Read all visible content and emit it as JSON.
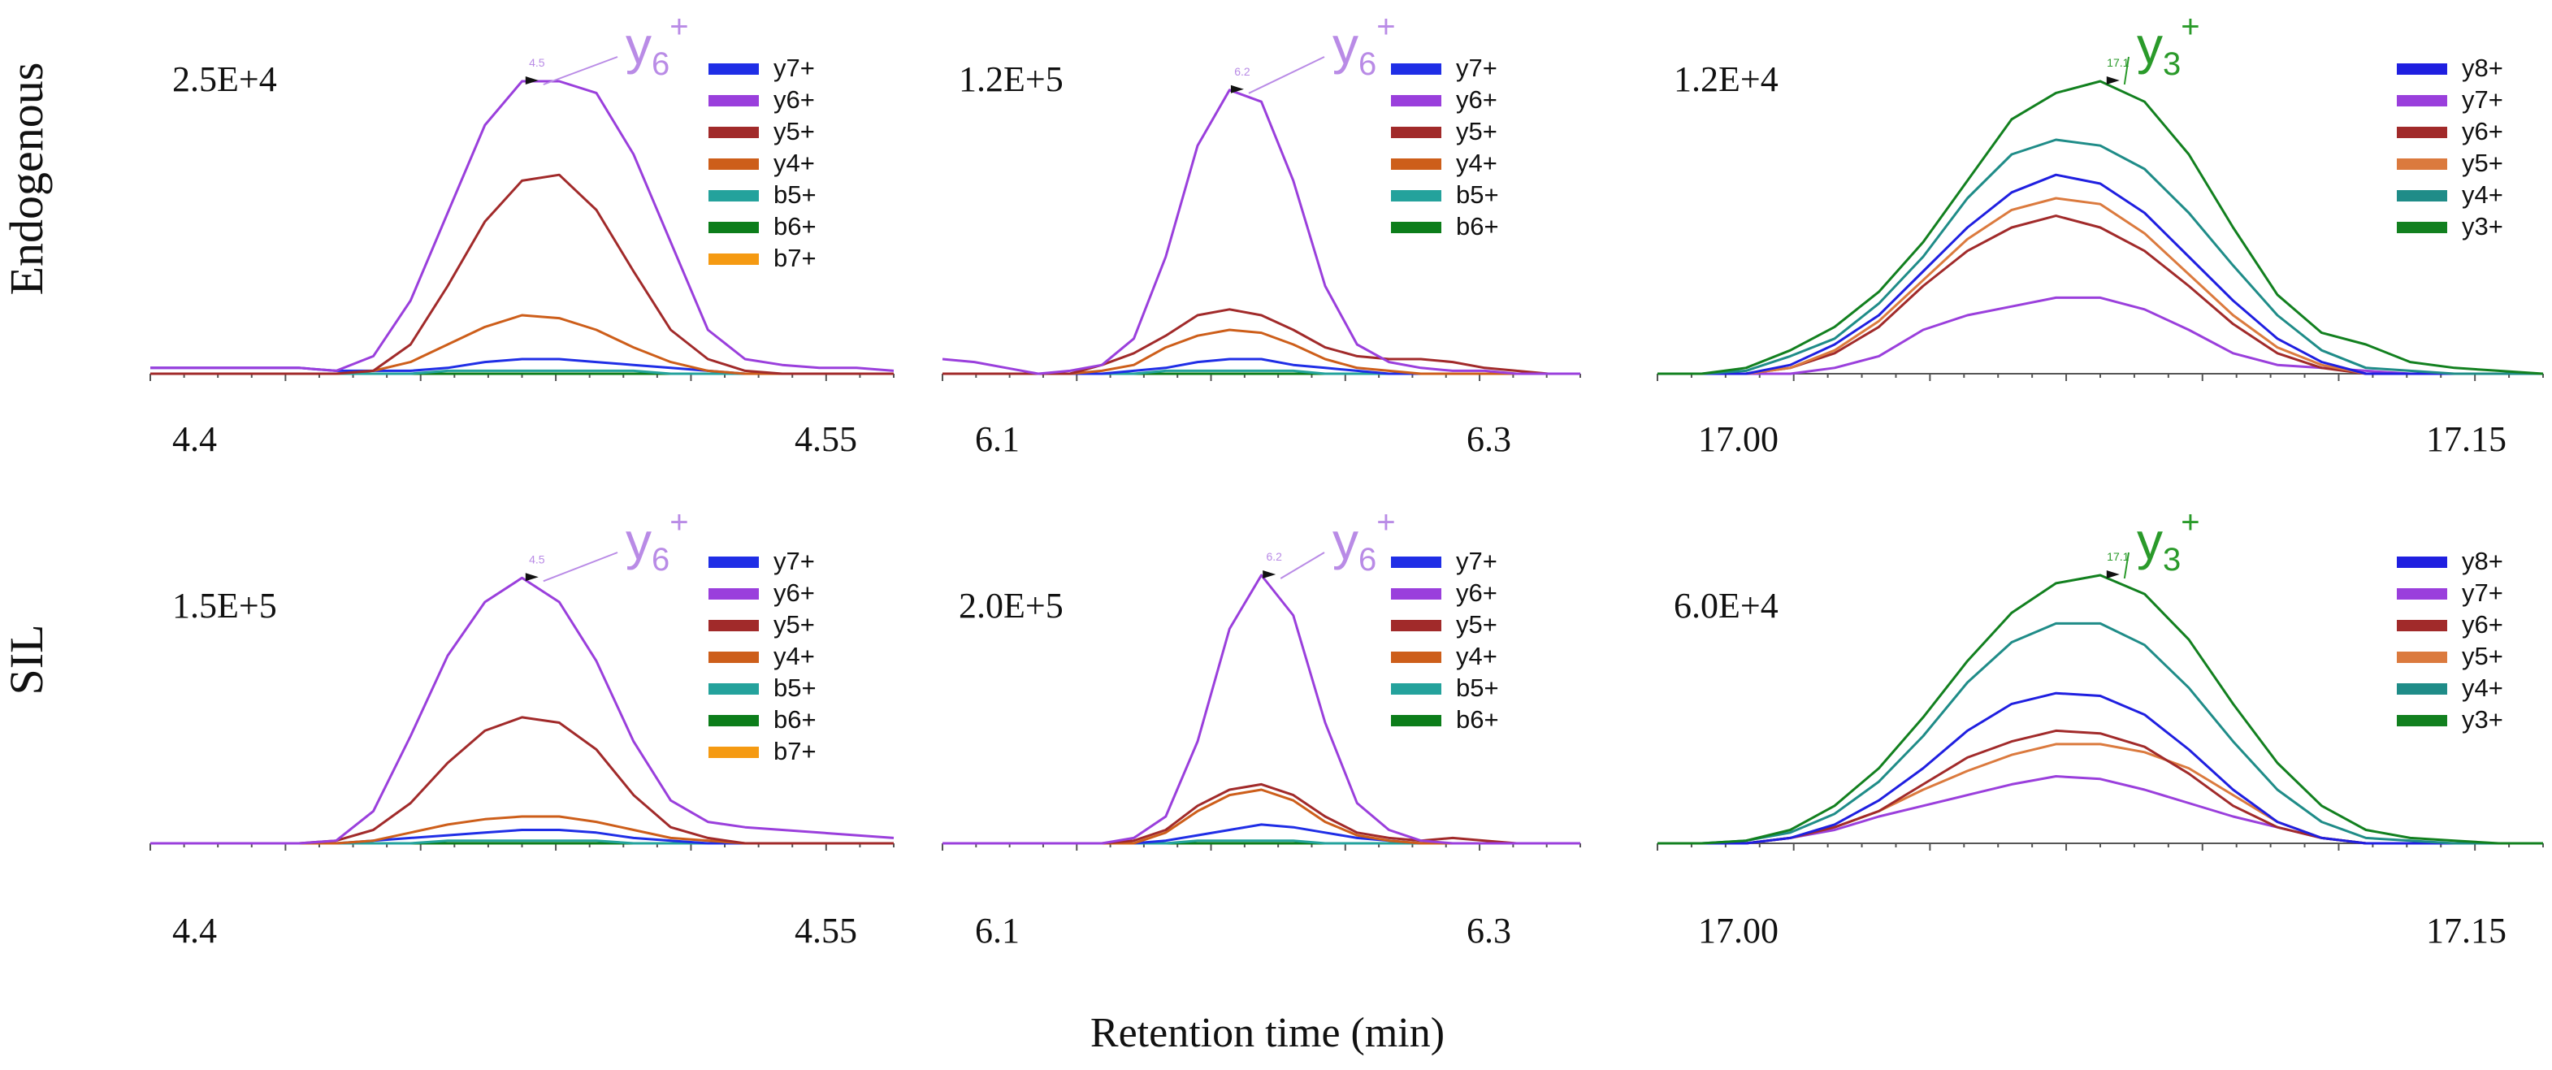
{
  "figure": {
    "row_labels": [
      "Endogenous",
      "SIL"
    ],
    "xlabel": "Retention time (min)"
  },
  "colors": {
    "y8+": "#1f1fe0",
    "y7+": "#1f2ee6",
    "y6+": "#9a3fdc",
    "y5+": "#a12a2a",
    "y4+": "#cd5e1a",
    "y3+": "#12801f",
    "b5+": "#24a29c",
    "b6+": "#0c7d1a",
    "b7+": "#f59a12",
    "p3_y7+": "#9a3fdc",
    "p3_y6+": "#a12a2a",
    "p3_y5+": "#db7a3e",
    "p3_y4+": "#1f8c88",
    "callout_purple": "#b98be6",
    "callout_green": "#2a9a2a"
  },
  "chart_data": [
    {
      "type": "line",
      "row": "Endogenous",
      "col": 0,
      "intensity_label": "2.5E+4",
      "x_tick_labels": [
        "4.4",
        "4.55"
      ],
      "apex_label": "4.5",
      "callout": {
        "ion": "y",
        "sub": "6",
        "sup": "+",
        "color_key": "callout_purple"
      },
      "legend": [
        "y7+",
        "y6+",
        "y5+",
        "y4+",
        "b5+",
        "b6+",
        "b7+"
      ],
      "series": [
        {
          "name": "y6+",
          "values": [
            0.02,
            0.02,
            0.02,
            0.02,
            0.02,
            0.01,
            0.06,
            0.25,
            0.55,
            0.85,
            1.0,
            1.0,
            0.96,
            0.75,
            0.45,
            0.15,
            0.05,
            0.03,
            0.02,
            0.02,
            0.01
          ]
        },
        {
          "name": "y5+",
          "values": [
            0,
            0,
            0,
            0,
            0,
            0,
            0.01,
            0.1,
            0.3,
            0.52,
            0.66,
            0.68,
            0.56,
            0.35,
            0.15,
            0.05,
            0.01,
            0,
            0,
            0,
            0
          ]
        },
        {
          "name": "y4+",
          "values": [
            0,
            0,
            0,
            0,
            0,
            0,
            0.01,
            0.04,
            0.1,
            0.16,
            0.2,
            0.19,
            0.15,
            0.09,
            0.04,
            0.01,
            0,
            0,
            0,
            0,
            0
          ]
        },
        {
          "name": "y7+",
          "values": [
            0.02,
            0.02,
            0.02,
            0.02,
            0.02,
            0.01,
            0.01,
            0.01,
            0.02,
            0.04,
            0.05,
            0.05,
            0.04,
            0.03,
            0.02,
            0.01,
            0,
            0,
            0,
            0,
            0
          ]
        },
        {
          "name": "b5+",
          "values": [
            0,
            0,
            0,
            0,
            0,
            0,
            0,
            0,
            0.01,
            0.01,
            0.01,
            0.01,
            0.01,
            0.01,
            0,
            0,
            0,
            0,
            0,
            0,
            0
          ]
        },
        {
          "name": "b6+",
          "values": [
            0,
            0,
            0,
            0,
            0,
            0,
            0,
            0,
            0,
            0,
            0,
            0,
            0,
            0,
            0,
            0,
            0,
            0,
            0,
            0,
            0
          ]
        },
        {
          "name": "b7+",
          "values": [
            0,
            0,
            0,
            0,
            0,
            0,
            0,
            0,
            0,
            0,
            0,
            0,
            0,
            0,
            0,
            0,
            0,
            0,
            0,
            0,
            0
          ]
        }
      ]
    },
    {
      "type": "line",
      "row": "Endogenous",
      "col": 1,
      "intensity_label": "1.2E+5",
      "x_tick_labels": [
        "6.1",
        "6.3"
      ],
      "apex_label": "6.2",
      "callout": {
        "ion": "y",
        "sub": "6",
        "sup": "+",
        "color_key": "callout_purple"
      },
      "legend": [
        "y7+",
        "y6+",
        "y5+",
        "y4+",
        "b5+",
        "b6+"
      ],
      "series": [
        {
          "name": "y6+",
          "values": [
            0.05,
            0.04,
            0.02,
            0.0,
            0.01,
            0.03,
            0.12,
            0.4,
            0.78,
            0.97,
            0.93,
            0.66,
            0.3,
            0.1,
            0.04,
            0.02,
            0.01,
            0.01,
            0.0,
            0.0,
            0.0
          ]
        },
        {
          "name": "y5+",
          "values": [
            0,
            0,
            0,
            0,
            0,
            0.03,
            0.07,
            0.13,
            0.2,
            0.22,
            0.2,
            0.15,
            0.09,
            0.06,
            0.05,
            0.05,
            0.04,
            0.02,
            0.01,
            0,
            0
          ]
        },
        {
          "name": "y4+",
          "values": [
            0,
            0,
            0,
            0,
            0,
            0.01,
            0.03,
            0.09,
            0.13,
            0.15,
            0.14,
            0.1,
            0.05,
            0.02,
            0.01,
            0,
            0,
            0,
            0,
            0,
            0
          ]
        },
        {
          "name": "y7+",
          "values": [
            0,
            0,
            0,
            0,
            0,
            0,
            0.01,
            0.02,
            0.04,
            0.05,
            0.05,
            0.03,
            0.02,
            0.01,
            0,
            0,
            0,
            0,
            0,
            0,
            0
          ]
        },
        {
          "name": "b5+",
          "values": [
            0,
            0,
            0,
            0,
            0,
            0,
            0,
            0.01,
            0.01,
            0.01,
            0.01,
            0.01,
            0,
            0,
            0,
            0,
            0,
            0,
            0,
            0,
            0
          ]
        },
        {
          "name": "b6+",
          "values": [
            0,
            0,
            0,
            0,
            0,
            0,
            0,
            0,
            0,
            0,
            0,
            0,
            0,
            0,
            0,
            0,
            0,
            0,
            0,
            0,
            0
          ]
        }
      ]
    },
    {
      "type": "line",
      "row": "Endogenous",
      "col": 2,
      "intensity_label": "1.2E+4",
      "x_tick_labels": [
        "17.00",
        "17.15"
      ],
      "apex_label": "17.1",
      "callout": {
        "ion": "y",
        "sub": "3",
        "sup": "+",
        "color_key": "callout_green"
      },
      "legend": [
        "y8+",
        "y7+",
        "y6+",
        "y5+",
        "y4+",
        "y3+"
      ],
      "series": [
        {
          "name": "y3+",
          "values": [
            0,
            0,
            0.02,
            0.08,
            0.16,
            0.28,
            0.45,
            0.66,
            0.87,
            0.96,
            1.0,
            0.93,
            0.75,
            0.5,
            0.27,
            0.14,
            0.1,
            0.04,
            0.02,
            0.01,
            0
          ]
        },
        {
          "name": "y4+",
          "values": [
            0,
            0,
            0.01,
            0.06,
            0.12,
            0.24,
            0.4,
            0.6,
            0.75,
            0.8,
            0.78,
            0.7,
            0.55,
            0.37,
            0.2,
            0.08,
            0.02,
            0.01,
            0,
            0,
            0
          ]
        },
        {
          "name": "y8+",
          "values": [
            0,
            0,
            0,
            0.03,
            0.1,
            0.2,
            0.35,
            0.5,
            0.62,
            0.68,
            0.65,
            0.55,
            0.4,
            0.25,
            0.12,
            0.04,
            0,
            0,
            0,
            0,
            0
          ]
        },
        {
          "name": "y5+",
          "values": [
            0,
            0,
            0,
            0.02,
            0.08,
            0.18,
            0.32,
            0.46,
            0.56,
            0.6,
            0.58,
            0.48,
            0.34,
            0.2,
            0.09,
            0.03,
            0,
            0,
            0,
            0,
            0
          ]
        },
        {
          "name": "y6+",
          "values": [
            0,
            0,
            0,
            0.02,
            0.07,
            0.16,
            0.3,
            0.42,
            0.5,
            0.54,
            0.5,
            0.42,
            0.3,
            0.17,
            0.07,
            0.02,
            0,
            0,
            0,
            0,
            0
          ]
        },
        {
          "name": "y7+",
          "values": [
            0,
            0,
            0,
            0,
            0.02,
            0.06,
            0.15,
            0.2,
            0.23,
            0.26,
            0.26,
            0.22,
            0.15,
            0.07,
            0.03,
            0.02,
            0.01,
            0,
            0,
            0,
            0
          ]
        }
      ]
    },
    {
      "type": "line",
      "row": "SIL",
      "col": 0,
      "intensity_label": "1.5E+5",
      "x_tick_labels": [
        "4.4",
        "4.55"
      ],
      "apex_label": "4.5",
      "callout": {
        "ion": "y",
        "sub": "6",
        "sup": "+",
        "color_key": "callout_purple"
      },
      "legend": [
        "y7+",
        "y6+",
        "y5+",
        "y4+",
        "b5+",
        "b6+",
        "b7+"
      ],
      "series": [
        {
          "name": "y6+",
          "values": [
            0,
            0,
            0,
            0,
            0,
            0.01,
            0.12,
            0.4,
            0.7,
            0.9,
            0.99,
            0.9,
            0.68,
            0.38,
            0.16,
            0.08,
            0.06,
            0.05,
            0.04,
            0.03,
            0.02
          ]
        },
        {
          "name": "y5+",
          "values": [
            0,
            0,
            0,
            0,
            0,
            0.01,
            0.05,
            0.15,
            0.3,
            0.42,
            0.47,
            0.45,
            0.35,
            0.18,
            0.06,
            0.02,
            0,
            0,
            0,
            0,
            0
          ]
        },
        {
          "name": "y4+",
          "values": [
            0,
            0,
            0,
            0,
            0,
            0,
            0.01,
            0.04,
            0.07,
            0.09,
            0.1,
            0.1,
            0.08,
            0.05,
            0.02,
            0.01,
            0,
            0,
            0,
            0,
            0
          ]
        },
        {
          "name": "y7+",
          "values": [
            0,
            0,
            0,
            0,
            0,
            0,
            0.01,
            0.02,
            0.03,
            0.04,
            0.05,
            0.05,
            0.04,
            0.02,
            0.01,
            0,
            0,
            0,
            0,
            0,
            0
          ]
        },
        {
          "name": "b5+",
          "values": [
            0,
            0,
            0,
            0,
            0,
            0,
            0,
            0,
            0.01,
            0.01,
            0.01,
            0.01,
            0.01,
            0,
            0,
            0,
            0,
            0,
            0,
            0,
            0
          ]
        },
        {
          "name": "b6+",
          "values": [
            0,
            0,
            0,
            0,
            0,
            0,
            0,
            0,
            0,
            0,
            0,
            0,
            0,
            0,
            0,
            0,
            0,
            0,
            0,
            0,
            0
          ]
        },
        {
          "name": "b7+",
          "values": [
            0,
            0,
            0,
            0,
            0,
            0,
            0,
            0,
            0,
            0,
            0,
            0,
            0,
            0,
            0,
            0,
            0,
            0,
            0,
            0,
            0
          ]
        }
      ]
    },
    {
      "type": "line",
      "row": "SIL",
      "col": 1,
      "intensity_label": "2.0E+5",
      "x_tick_labels": [
        "6.1",
        "6.3"
      ],
      "apex_label": "6.2",
      "callout": {
        "ion": "y",
        "sub": "6",
        "sup": "+",
        "color_key": "callout_purple"
      },
      "legend": [
        "y7+",
        "y6+",
        "y5+",
        "y4+",
        "b5+",
        "b6+"
      ],
      "series": [
        {
          "name": "y6+",
          "values": [
            0,
            0,
            0,
            0,
            0,
            0,
            0.02,
            0.1,
            0.38,
            0.8,
            1.0,
            0.85,
            0.45,
            0.15,
            0.05,
            0.01,
            0,
            0,
            0,
            0,
            0
          ]
        },
        {
          "name": "y5+",
          "values": [
            0,
            0,
            0,
            0,
            0,
            0,
            0.01,
            0.05,
            0.14,
            0.2,
            0.22,
            0.18,
            0.1,
            0.04,
            0.02,
            0.01,
            0.02,
            0.01,
            0,
            0,
            0
          ]
        },
        {
          "name": "y4+",
          "values": [
            0,
            0,
            0,
            0,
            0,
            0,
            0,
            0.04,
            0.12,
            0.18,
            0.2,
            0.16,
            0.08,
            0.03,
            0.01,
            0,
            0,
            0,
            0,
            0,
            0
          ]
        },
        {
          "name": "y7+",
          "values": [
            0,
            0,
            0,
            0,
            0,
            0,
            0,
            0.01,
            0.03,
            0.05,
            0.07,
            0.06,
            0.04,
            0.02,
            0.01,
            0,
            0,
            0,
            0,
            0,
            0
          ]
        },
        {
          "name": "b5+",
          "values": [
            0,
            0,
            0,
            0,
            0,
            0,
            0,
            0,
            0.01,
            0.01,
            0.01,
            0.01,
            0,
            0,
            0,
            0,
            0,
            0,
            0,
            0,
            0
          ]
        },
        {
          "name": "b6+",
          "values": [
            0,
            0,
            0,
            0,
            0,
            0,
            0,
            0,
            0,
            0,
            0,
            0,
            0,
            0,
            0,
            0,
            0,
            0,
            0,
            0,
            0
          ]
        }
      ]
    },
    {
      "type": "line",
      "row": "SIL",
      "col": 2,
      "intensity_label": "6.0E+4",
      "x_tick_labels": [
        "17.00",
        "17.15"
      ],
      "apex_label": "17.1",
      "callout": {
        "ion": "y",
        "sub": "3",
        "sup": "+",
        "color_key": "callout_green"
      },
      "legend": [
        "y8+",
        "y7+",
        "y6+",
        "y5+",
        "y4+",
        "y3+"
      ],
      "series": [
        {
          "name": "y3+",
          "values": [
            0,
            0,
            0.01,
            0.05,
            0.14,
            0.28,
            0.47,
            0.68,
            0.86,
            0.97,
            1.0,
            0.93,
            0.76,
            0.52,
            0.3,
            0.14,
            0.05,
            0.02,
            0.01,
            0,
            0
          ]
        },
        {
          "name": "y4+",
          "values": [
            0,
            0,
            0.01,
            0.04,
            0.11,
            0.23,
            0.4,
            0.6,
            0.75,
            0.82,
            0.82,
            0.74,
            0.58,
            0.38,
            0.2,
            0.08,
            0.02,
            0.01,
            0,
            0,
            0
          ]
        },
        {
          "name": "y8+",
          "values": [
            0,
            0,
            0,
            0.02,
            0.07,
            0.16,
            0.28,
            0.42,
            0.52,
            0.56,
            0.55,
            0.48,
            0.35,
            0.2,
            0.08,
            0.02,
            0,
            0,
            0,
            0,
            0
          ]
        },
        {
          "name": "y6+",
          "values": [
            0,
            0,
            0,
            0.02,
            0.06,
            0.12,
            0.22,
            0.32,
            0.38,
            0.42,
            0.41,
            0.36,
            0.26,
            0.14,
            0.06,
            0.02,
            0,
            0,
            0,
            0,
            0
          ]
        },
        {
          "name": "y5+",
          "values": [
            0,
            0,
            0,
            0.02,
            0.06,
            0.12,
            0.2,
            0.27,
            0.33,
            0.37,
            0.37,
            0.34,
            0.28,
            0.18,
            0.08,
            0.02,
            0,
            0,
            0,
            0,
            0
          ]
        },
        {
          "name": "y7+",
          "values": [
            0,
            0,
            0,
            0.02,
            0.05,
            0.1,
            0.14,
            0.18,
            0.22,
            0.25,
            0.24,
            0.2,
            0.15,
            0.1,
            0.06,
            0.02,
            0,
            0,
            0,
            0,
            0
          ]
        }
      ]
    }
  ]
}
